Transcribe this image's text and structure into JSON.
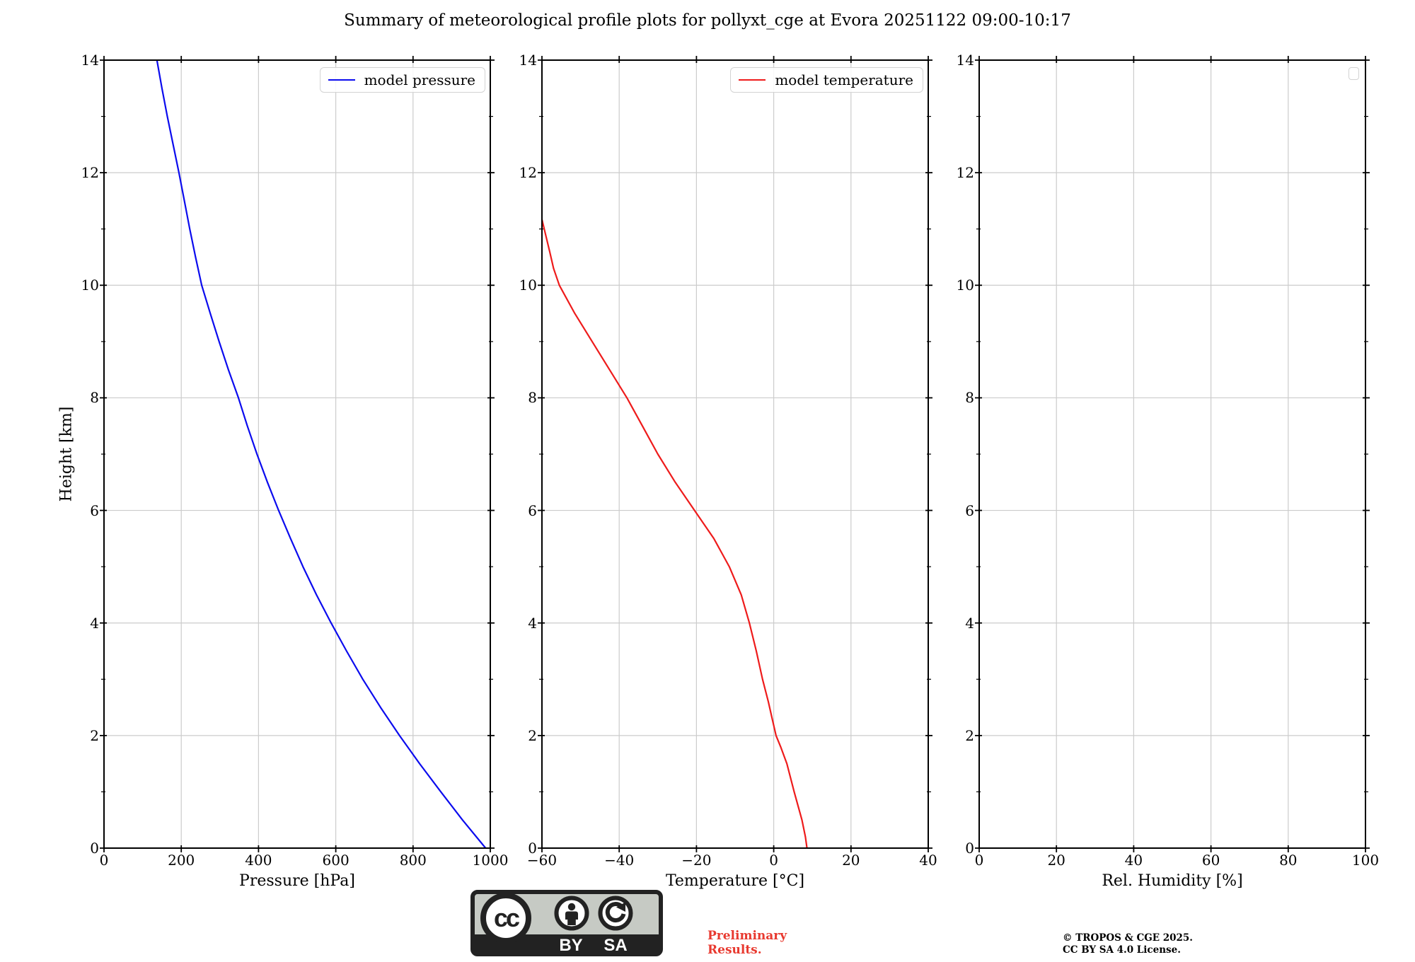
{
  "title": "Summary of meteorological profile plots for pollyxt_cge at Evora 20251122 09:00-10:17",
  "ylabel": "Height [km]",
  "colors": {
    "pressure": "#0b0bee",
    "temperature": "#ee1b1b",
    "grid": "#cccccc",
    "axis": "#000000",
    "preliminary_red": "#e8392f",
    "legend_border": "#d3d3d3",
    "badge_bg": "#c6cac4",
    "badge_dark": "#222222"
  },
  "chart_data": [
    {
      "type": "line",
      "xlabel": "Pressure [hPa]",
      "xlim": [
        0,
        1000
      ],
      "xticks": [
        0,
        200,
        400,
        600,
        800,
        1000
      ],
      "ylim": [
        0,
        14
      ],
      "yticks": [
        0,
        2,
        4,
        6,
        8,
        10,
        12,
        14
      ],
      "yminorticks": [
        1,
        3,
        5,
        7,
        9,
        11,
        13
      ],
      "grid": true,
      "legend": {
        "label": "model pressure",
        "position": "upper right"
      },
      "series": [
        {
          "name": "model pressure",
          "color_key": "pressure",
          "x": [
            988,
            928,
            872,
            817,
            765,
            716,
            670,
            628,
            588,
            550,
            515,
            483,
            452,
            423,
            396,
            371,
            348,
            322,
            298,
            275,
            253,
            237,
            222,
            208,
            194,
            179,
            164,
            150,
            137
          ],
          "y": [
            0,
            0.5,
            1,
            1.5,
            2,
            2.5,
            3,
            3.5,
            4,
            4.5,
            5,
            5.5,
            6,
            6.5,
            7,
            7.5,
            8,
            8.5,
            9,
            9.5,
            10,
            10.5,
            11,
            11.5,
            12,
            12.5,
            13,
            13.5,
            14
          ]
        }
      ]
    },
    {
      "type": "line",
      "xlabel": "Temperature [°C]",
      "xlim": [
        -60,
        40
      ],
      "xticks": [
        -60,
        -40,
        -20,
        0,
        20,
        40
      ],
      "ylim": [
        0,
        14
      ],
      "yticks": [
        0,
        2,
        4,
        6,
        8,
        10,
        12,
        14
      ],
      "yminorticks": [
        1,
        3,
        5,
        7,
        9,
        11,
        13
      ],
      "grid": true,
      "legend": {
        "label": "model temperature",
        "position": "upper right"
      },
      "series": [
        {
          "name": "model temperature",
          "color_key": "temperature",
          "x": [
            8.6,
            8.2,
            7.3,
            5.3,
            3.4,
            1.8,
            0.6,
            -0.4,
            -1.4,
            -2.9,
            -4.5,
            -6.3,
            -8.4,
            -11.5,
            -15.5,
            -20.5,
            -25.5,
            -30.0,
            -34.0,
            -38.0,
            -42.5,
            -47.0,
            -51.5,
            -55.5,
            -57.0,
            -58.0,
            -60.0
          ],
          "y": [
            0,
            0.2,
            0.5,
            1.0,
            1.5,
            1.8,
            2.0,
            2.3,
            2.6,
            3.0,
            3.5,
            4.0,
            4.5,
            5.0,
            5.5,
            6.0,
            6.5,
            7.0,
            7.5,
            8.0,
            8.5,
            9.0,
            9.5,
            10.0,
            10.3,
            10.6,
            11.17
          ]
        }
      ]
    },
    {
      "type": "line",
      "xlabel": "Rel. Humidity [%]",
      "xlim": [
        0,
        100
      ],
      "xticks": [
        0,
        20,
        40,
        60,
        80,
        100
      ],
      "ylim": [
        0,
        14
      ],
      "yticks": [
        0,
        2,
        4,
        6,
        8,
        10,
        12,
        14
      ],
      "yminorticks": [
        1,
        3,
        5,
        7,
        9,
        11,
        13
      ],
      "grid": true,
      "legend": {
        "label": "",
        "empty": true
      },
      "series": []
    }
  ],
  "footer": {
    "badge_by": "BY",
    "badge_sa": "SA",
    "preliminary_line1": "Preliminary",
    "preliminary_line2": "Results.",
    "copyright_line1": "© TROPOS & CGE 2025.",
    "copyright_line2": "CC BY SA 4.0 License."
  }
}
